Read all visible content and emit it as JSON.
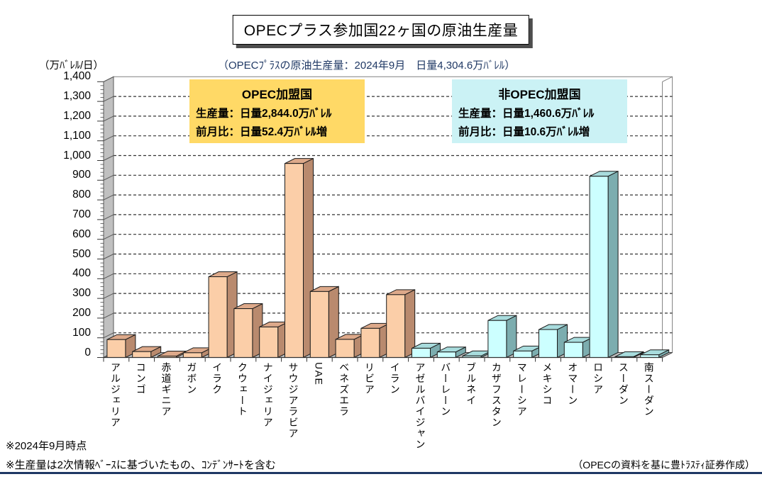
{
  "page_title": "OPECプラス参加国22ヶ国の原油生産量",
  "subtitle": "（OPECﾌﾟﾗｽの原油生産量：2024年9月　日量4,304.6万ﾊﾞﾚﾙ）",
  "y_axis_unit": "（万ﾊﾞﾚﾙ/日）",
  "opec_box": {
    "title": "OPEC加盟国",
    "line1": "生産量：日量2,844.0万ﾊﾞﾚﾙ",
    "line2": "前月比：日量52.4万ﾊﾞﾚﾙ増",
    "bg_color": "#FFD966"
  },
  "nonopec_box": {
    "title": "非OPEC加盟国",
    "line1": "生産量：日量1,460.6万ﾊﾞﾚﾙ",
    "line2": "前月比：日量10.6万ﾊﾞﾚﾙ増",
    "bg_color": "#CBF2F5"
  },
  "footnote_1": "※2024年9月時点",
  "footnote_2": "※生産量は2次情報ﾍﾞｰｽに基づいたもの、ｺﾝﾃﾞﾝｻｰﾄを含む",
  "source_note": "（OPECの資料を基に豊ﾄﾗｽﾃｨ証券作成）",
  "bottom_rule_color": "#1F3864",
  "chart_data": {
    "type": "bar",
    "style": "3d-column",
    "title": "OPECプラス参加国22ヶ国の原油生産量",
    "ylabel": "万ﾊﾞﾚﾙ/日",
    "ylim": [
      0,
      1400
    ],
    "ytick_step": 100,
    "grid": "dashed-horizontal",
    "legend_position": "none",
    "groups": [
      {
        "name": "OPEC加盟国",
        "total": 2844.0,
        "mom_change": 52.4,
        "colors": {
          "front": "#FBCEA8",
          "side": "#B98A6E",
          "top": "#DDA98A"
        },
        "countries": [
          "アルジェリア",
          "コンゴ",
          "赤道ギニア",
          "ガボン",
          "イラク",
          "クウェート",
          "ナイジェリア",
          "サウジアラビア",
          "UAE",
          "ベネズエラ",
          "リビア",
          "イラン"
        ],
        "values": [
          91,
          30,
          7,
          24,
          410,
          248,
          155,
          985,
          335,
          92,
          148,
          319
        ]
      },
      {
        "name": "非OPEC加盟国",
        "total": 1460.6,
        "mom_change": 10.6,
        "colors": {
          "front": "#CCFFFF",
          "side": "#7CADAF",
          "top": "#A8DCDD"
        },
        "countries": [
          "アゼルバイジャン",
          "バーレーン",
          "ブルネイ",
          "カザフスタン",
          "マレーシア",
          "メキシコ",
          "オマーン",
          "ロシア",
          "スーダン",
          "南スーダン"
        ],
        "values": [
          47,
          28,
          8,
          188,
          33,
          142,
          77,
          920,
          4,
          13.6
        ]
      }
    ]
  }
}
